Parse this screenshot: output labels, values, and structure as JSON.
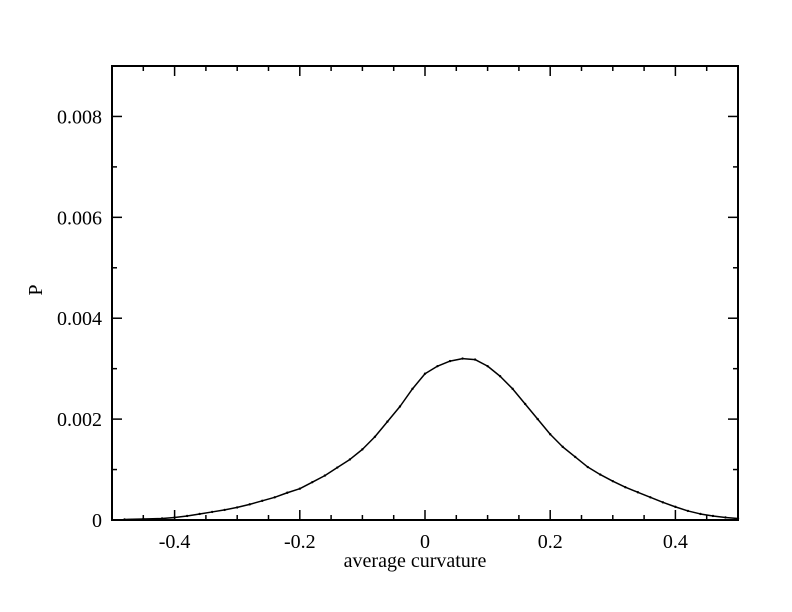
{
  "chart_data": {
    "type": "line",
    "title": "",
    "xlabel": "average curvature",
    "ylabel": "P",
    "xlim": [
      -0.5,
      0.5
    ],
    "ylim": [
      0,
      0.009
    ],
    "grid": false,
    "legend": "none",
    "x_ticks": [
      -0.4,
      -0.2,
      0,
      0.2,
      0.4
    ],
    "x_tick_labels": [
      "-0.4",
      "-0.2",
      "0",
      "0.2",
      "0.4"
    ],
    "y_ticks": [
      0,
      0.002,
      0.004,
      0.006,
      0.008
    ],
    "y_tick_labels": [
      "0",
      "0.002",
      "0.004",
      "0.006",
      "0.008"
    ],
    "x_minor_step": 0.05,
    "y_minor_step": 0.001,
    "line_color": "#000000",
    "series": [
      {
        "x": [
          -0.48,
          -0.45,
          -0.42,
          -0.4,
          -0.38,
          -0.36,
          -0.34,
          -0.32,
          -0.3,
          -0.28,
          -0.26,
          -0.24,
          -0.22,
          -0.2,
          -0.18,
          -0.16,
          -0.14,
          -0.12,
          -0.1,
          -0.08,
          -0.06,
          -0.04,
          -0.02,
          0.0,
          0.02,
          0.04,
          0.06,
          0.08,
          0.1,
          0.12,
          0.14,
          0.16,
          0.18,
          0.2,
          0.22,
          0.24,
          0.26,
          0.28,
          0.3,
          0.32,
          0.34,
          0.36,
          0.38,
          0.4,
          0.42,
          0.44,
          0.46,
          0.48,
          0.5
        ],
        "values": [
          1e-05,
          2e-05,
          3e-05,
          5e-05,
          8e-05,
          0.00012,
          0.00016,
          0.0002,
          0.00025,
          0.00031,
          0.00038,
          0.00045,
          0.00054,
          0.00062,
          0.00075,
          0.00088,
          0.00104,
          0.0012,
          0.0014,
          0.00165,
          0.00195,
          0.00225,
          0.0026,
          0.0029,
          0.00305,
          0.00315,
          0.0032,
          0.00318,
          0.00305,
          0.00285,
          0.0026,
          0.0023,
          0.002,
          0.0017,
          0.00145,
          0.00125,
          0.00105,
          0.0009,
          0.00077,
          0.00065,
          0.00055,
          0.00045,
          0.00035,
          0.00026,
          0.00018,
          0.00012,
          8e-05,
          5e-05,
          3e-05
        ]
      }
    ]
  }
}
